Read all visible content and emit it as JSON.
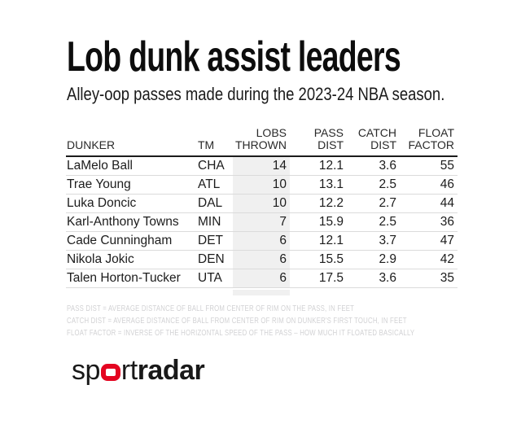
{
  "chart_data": {
    "type": "table",
    "title": "Lob dunk assist leaders",
    "subtitle": "Alley-oop passes made during the 2023-24 NBA season.",
    "columns": [
      {
        "label": "DUNKER",
        "align": "left"
      },
      {
        "label": "TM",
        "align": "left"
      },
      {
        "label": "LOBS\nTHROWN",
        "align": "right",
        "highlight": true
      },
      {
        "label": "PASS\nDIST",
        "align": "right"
      },
      {
        "label": "CATCH\nDIST",
        "align": "right"
      },
      {
        "label": "FLOAT\nFACTOR",
        "align": "right"
      }
    ],
    "rows": [
      [
        "LaMelo Ball",
        "CHA",
        14,
        12.1,
        3.6,
        55
      ],
      [
        "Trae Young",
        "ATL",
        10,
        13.1,
        2.5,
        46
      ],
      [
        "Luka Doncic",
        "DAL",
        10,
        12.2,
        2.7,
        44
      ],
      [
        "Karl-Anthony Towns",
        "MIN",
        7,
        15.9,
        2.5,
        36
      ],
      [
        "Cade Cunningham",
        "DET",
        6,
        12.1,
        3.7,
        47
      ],
      [
        "Nikola Jokic",
        "DEN",
        6,
        15.5,
        2.9,
        42
      ],
      [
        "Talen Horton-Tucker",
        "UTA",
        6,
        17.5,
        3.6,
        35
      ]
    ],
    "footnotes": [
      "PASS DIST = AVERAGE DISTANCE OF BALL FROM CENTER OF RIM ON THE PASS, IN FEET",
      "CATCH DIST = AVERAGE DISTANCE OF BALL FROM CENTER OF RIM ON DUNKER'S FIRST TOUCH, IN FEET",
      "FLOAT FACTOR = INVERSE OF THE HORIZONTAL SPEED OF THE PASS – HOW MUCH IT FLOATED BASICALLY"
    ]
  },
  "logo": {
    "prefix": "sp",
    "middle": "rt",
    "suffix": "radar"
  },
  "colors": {
    "accent_red": "#e40521",
    "highlight_column_bg": "#f0f0f0",
    "header_rule": "#1c1c1c",
    "row_divider": "#dbdbdb",
    "footnote_gray": "#d2d2d4",
    "title_text": "#0d0d0d"
  }
}
